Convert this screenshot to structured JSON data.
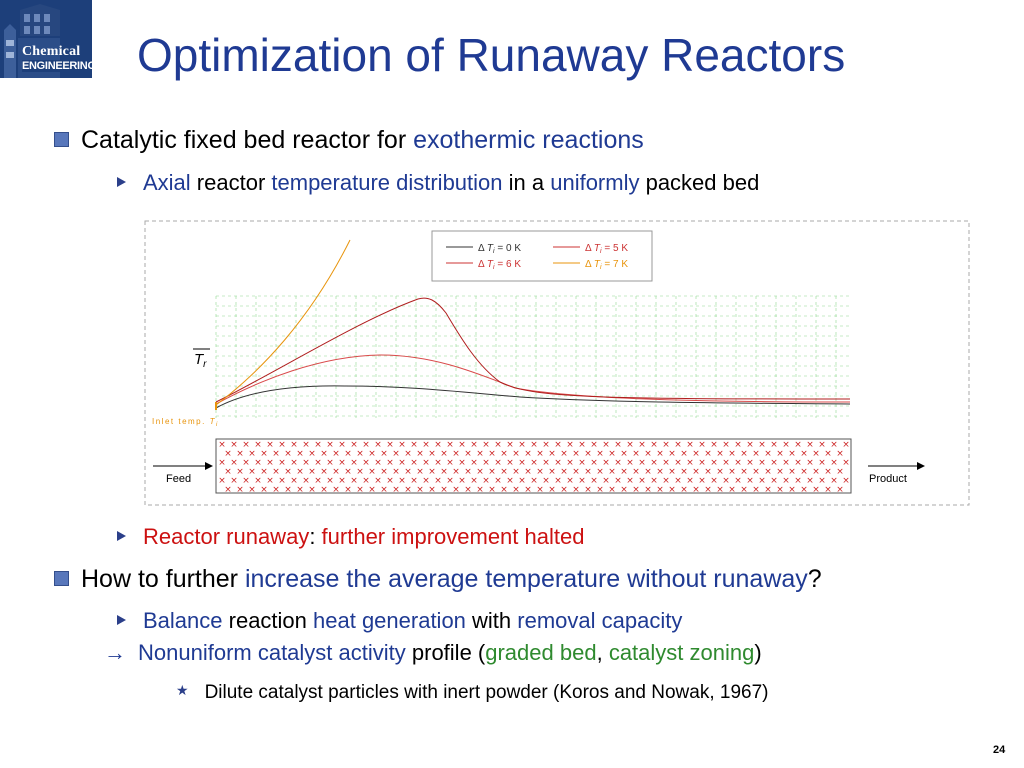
{
  "logo": {
    "line1": "Chemical",
    "line2": "ENGINEERING"
  },
  "title": "Optimization of Runaway Reactors",
  "bullet1": {
    "plain": "Catalytic fixed bed reactor for ",
    "blue": "exothermic reactions"
  },
  "sub1": {
    "p1": "Axial",
    "p2": " reactor ",
    "p3": "temperature distribution",
    "p4": " in a ",
    "p5": "uniformly",
    "p6": " packed bed"
  },
  "figure": {
    "legend": [
      {
        "delta": "Δ",
        "var": "T",
        "sub": "i",
        "eq": " = ",
        "value": "0 K",
        "color": "#333333"
      },
      {
        "delta": "Δ",
        "var": "T",
        "sub": "i",
        "eq": " = ",
        "value": "5 K",
        "color": "#cc3333"
      },
      {
        "delta": "Δ",
        "var": "T",
        "sub": "i",
        "eq": " = ",
        "value": "6 K",
        "color": "#cc3333"
      },
      {
        "delta": "Δ",
        "var": "T",
        "sub": "i",
        "eq": " = ",
        "value": "7 K",
        "color": "#e8940c"
      }
    ],
    "tr_label_var": "T",
    "tr_label_sub": "r",
    "inlet_label": "Inlet temp. ",
    "inlet_var": "T",
    "inlet_sub": "i",
    "feed_label": "Feed",
    "product_label": "Product",
    "colors": {
      "curve0": "#333333",
      "curve5": "#d94a4a",
      "curve6": "#b01e1e",
      "curve7": "#e8940c",
      "grid": "#8fd88f",
      "bed": "#cc2222"
    }
  },
  "sub2": {
    "red1": "Reactor runaway",
    "colon": ": ",
    "red2": "further improvement halted"
  },
  "bullet2": {
    "p1": "How to further ",
    "p2": "increase the average temperature without runaway",
    "p3": "?"
  },
  "sub3": {
    "p1": "Balance",
    "p2": " reaction ",
    "p3": "heat generation",
    "p4": " with ",
    "p5": "removal capacity"
  },
  "sub4": {
    "arrow": "→",
    "p1": "Nonuniform catalyst activity",
    "p2": " profile (",
    "p3": "graded bed",
    "p4": ", ",
    "p5": "catalyst zoning",
    "p6": ")"
  },
  "sub5": {
    "star": "★",
    "text": "Dilute catalyst particles with inert powder (Koros and Nowak, 1967)"
  },
  "page_number": "24"
}
